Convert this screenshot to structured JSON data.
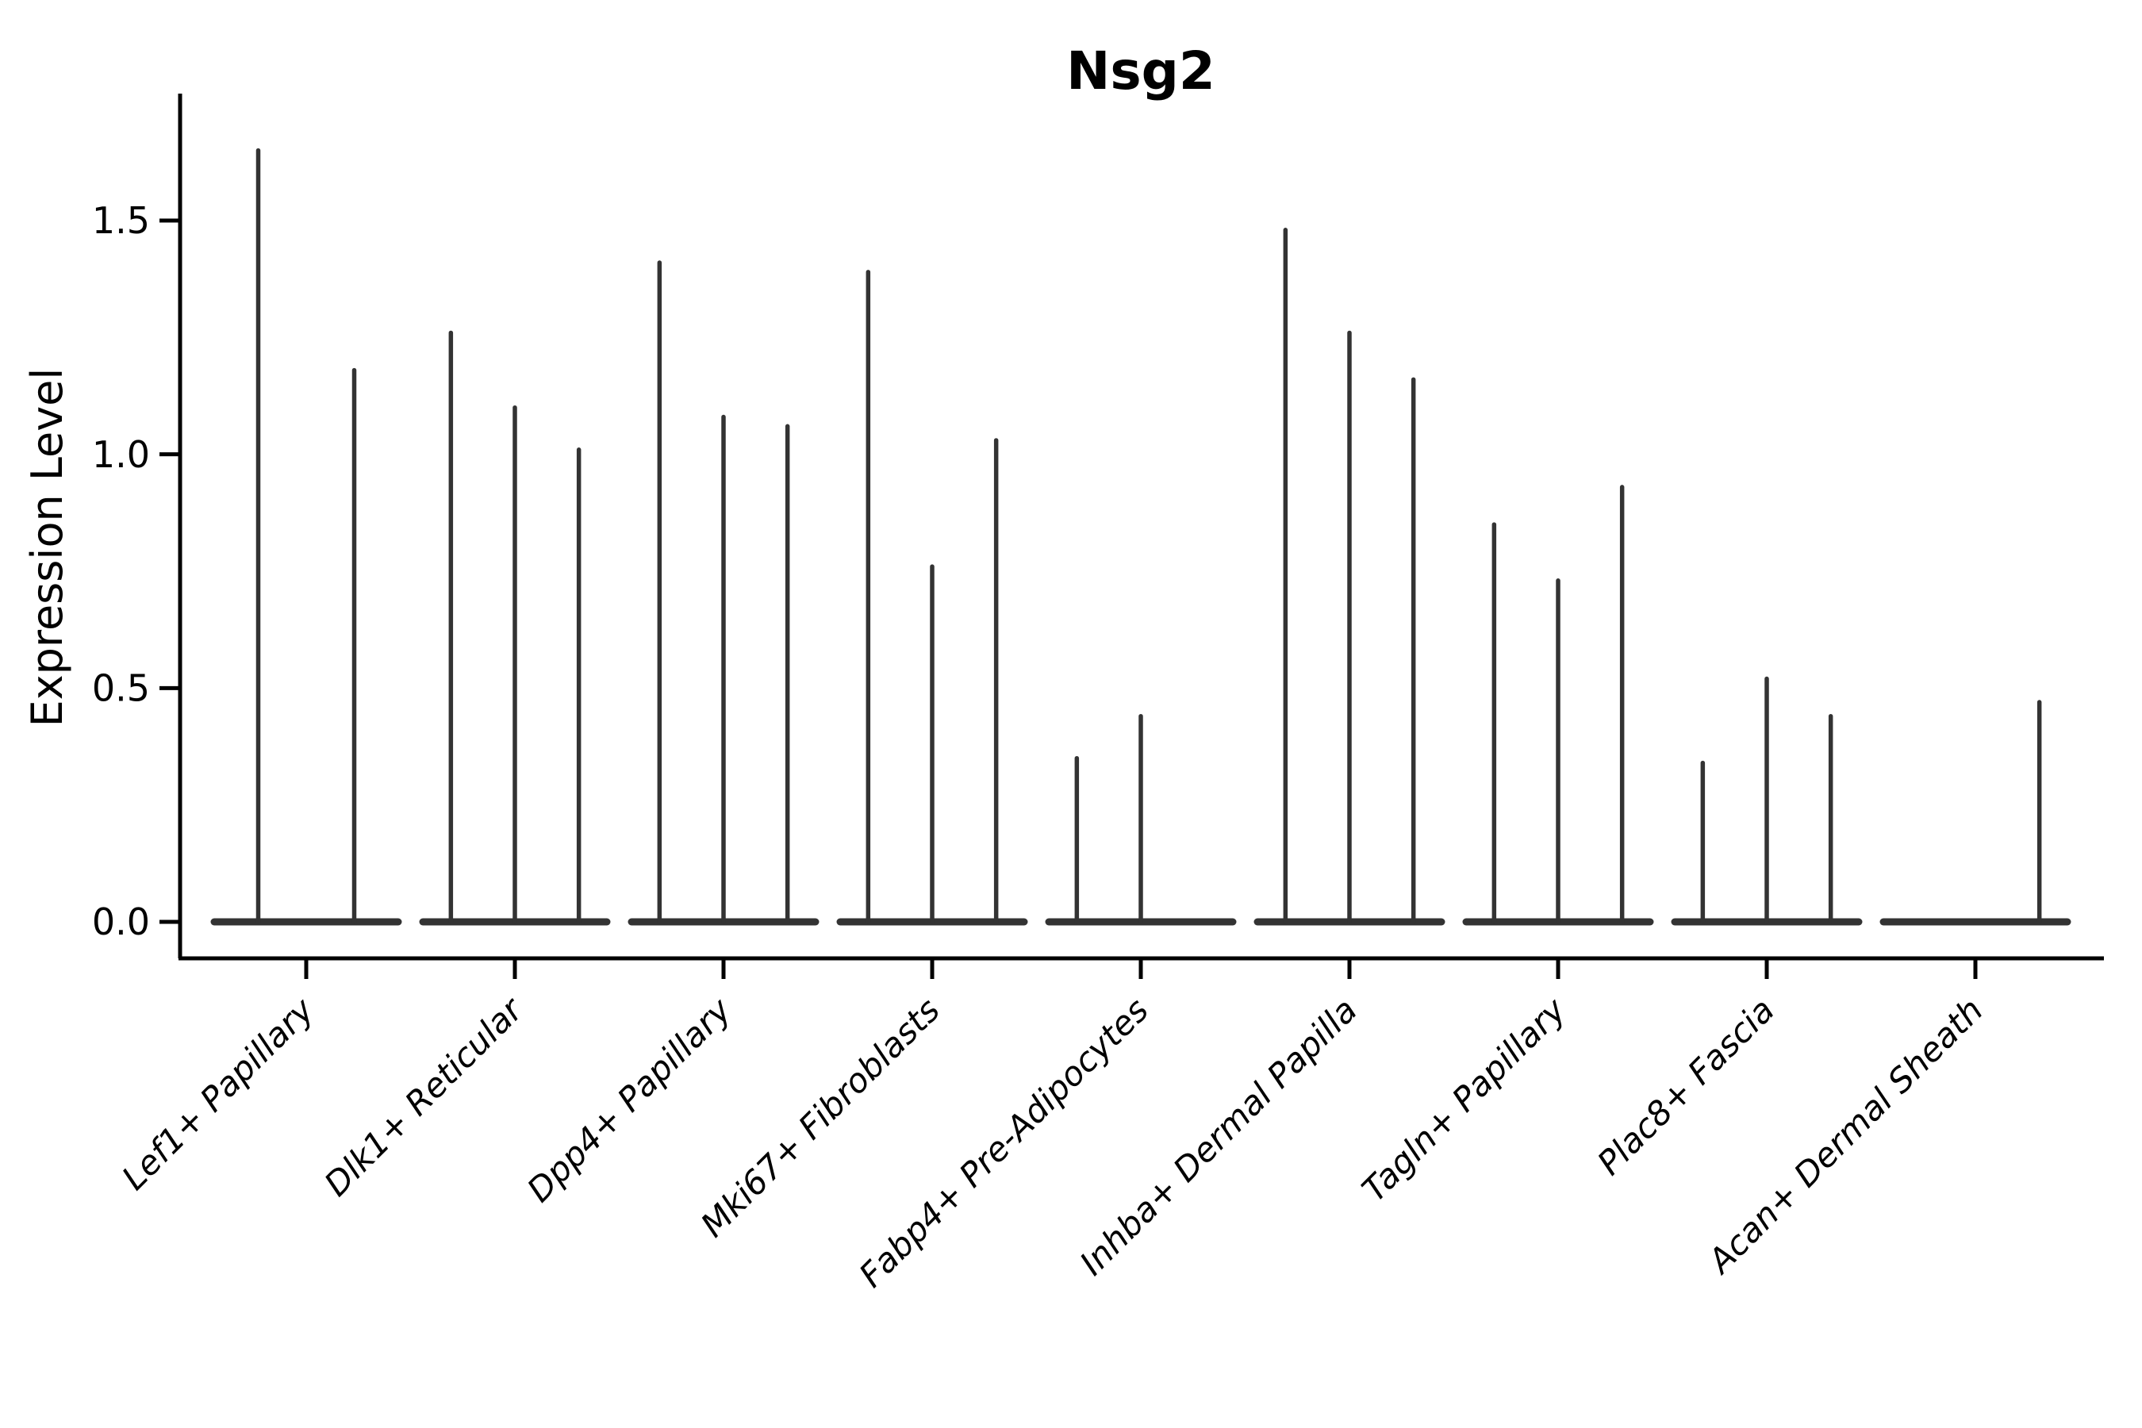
{
  "page": {
    "background": "#ffffff"
  },
  "chart_data": {
    "type": "violin",
    "title": "Nsg2",
    "ylabel": "Expression Level",
    "xlabel": "",
    "grid": false,
    "legend": "none",
    "axis_color": "#000000",
    "violin_color": "#333333",
    "ylim": [
      -0.08,
      1.77
    ],
    "ytick_values": [
      0.0,
      0.5,
      1.0,
      1.5
    ],
    "ytick_labels": [
      "0.0",
      "0.5",
      "1.0",
      "1.5"
    ],
    "categories": [
      {
        "label": "Lef1+ Papillary",
        "violin_peaks": [
          1.65,
          1.18
        ]
      },
      {
        "label": "Dlk1+ Reticular",
        "violin_peaks": [
          1.26,
          1.1,
          1.01
        ]
      },
      {
        "label": "Dpp4+ Papillary",
        "violin_peaks": [
          1.41,
          1.08,
          1.06
        ]
      },
      {
        "label": "Mki67+ Fibroblasts",
        "violin_peaks": [
          1.39,
          0.76,
          1.03
        ]
      },
      {
        "label": "Fabp4+ Pre-Adipocytes",
        "violin_peaks": [
          0.35,
          0.44,
          0
        ]
      },
      {
        "label": "Inhba+ Dermal Papilla",
        "violin_peaks": [
          1.48,
          1.26,
          1.16
        ]
      },
      {
        "label": "Tagln+ Papillary",
        "violin_peaks": [
          0.85,
          0.73,
          0.93
        ]
      },
      {
        "label": "Plac8+ Fascia",
        "violin_peaks": [
          0.34,
          0.52,
          0.44
        ]
      },
      {
        "label": "Acan+ Dermal Sheath",
        "violin_peaks": [
          0,
          0,
          0.47
        ]
      }
    ]
  }
}
